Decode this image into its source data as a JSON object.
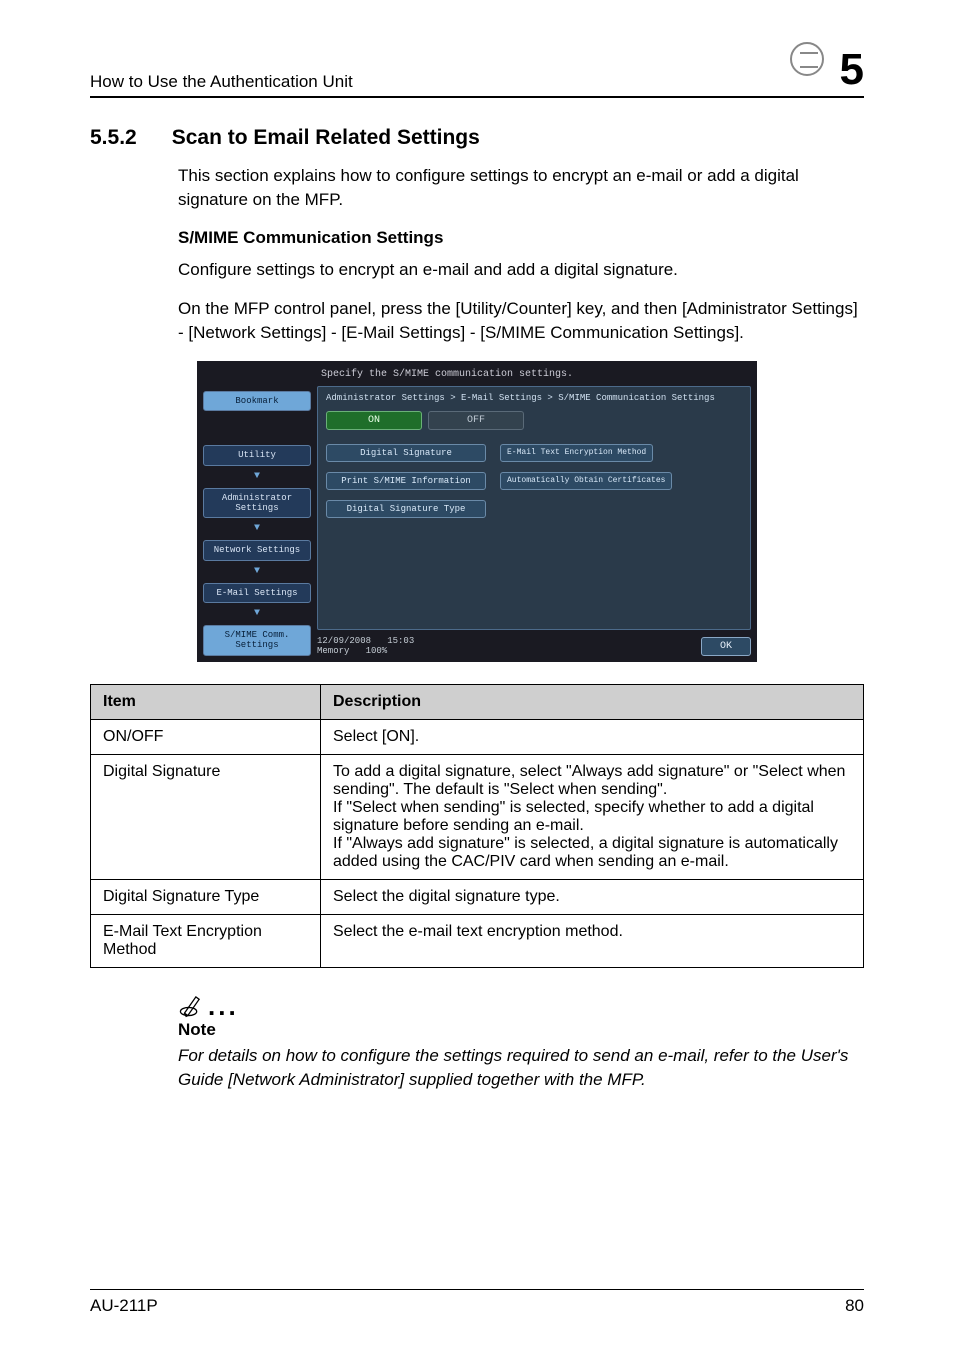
{
  "header": {
    "left": "How to Use the Authentication Unit",
    "chapter": "5"
  },
  "section": {
    "number": "5.5.2",
    "title": "Scan to Email Related Settings"
  },
  "intro": "This section explains how to configure settings to encrypt an e-mail or add a digital signature on the MFP.",
  "subheading": "S/MIME Communication Settings",
  "para1": "Configure settings to encrypt an e-mail and add a digital signature.",
  "para2": "On the MFP control panel, press the [Utility/Counter] key, and then [Administrator Settings] - [Network Settings] - [E-Mail Settings] - [S/MIME Communication Settings].",
  "panel": {
    "instruction": "Specify the S/MIME communication settings.",
    "breadcrumb": "Administrator Settings > E-Mail Settings > S/MIME Communication Settings",
    "left_buttons": {
      "bookmark": "Bookmark",
      "utility": "Utility",
      "admin": "Administrator Settings",
      "network": "Network Settings",
      "email": "E-Mail Settings",
      "smime": "S/MIME Comm. Settings"
    },
    "toggle": {
      "on": "ON",
      "off": "OFF"
    },
    "options": {
      "digital_signature": "Digital Signature",
      "email_text_enc": "E-Mail Text Encryption Method",
      "print_smime": "Print S/MIME Information",
      "auto_obtain": "Automatically Obtain Certificates",
      "sig_type": "Digital Signature Type"
    },
    "footer": {
      "date": "12/09/2008",
      "time": "15:03",
      "memory_label": "Memory",
      "memory_val": "100%",
      "ok": "OK"
    }
  },
  "table": {
    "head_item": "Item",
    "head_desc": "Description",
    "rows": [
      {
        "item": "ON/OFF",
        "desc": "Select [ON]."
      },
      {
        "item": "Digital Signature",
        "desc": "To add a digital signature, select \"Always add signature\" or \"Select when sending\". The default is \"Select when sending\".\nIf \"Select when sending\" is selected, specify whether to add a digital signature before sending an e-mail.\nIf \"Always add signature\" is selected, a digital signature is automatically added using the CAC/PIV card when sending an e-mail."
      },
      {
        "item": "Digital Signature Type",
        "desc": "Select the digital signature type."
      },
      {
        "item": "E-Mail Text Encryption Method",
        "desc": "Select the e-mail text encryption method."
      }
    ]
  },
  "note": {
    "label": "Note",
    "text": "For details on how to configure the settings required to send an e-mail, refer to the User's Guide [Network Administrator] supplied together with the MFP."
  },
  "footer": {
    "model": "AU-211P",
    "page": "80"
  }
}
